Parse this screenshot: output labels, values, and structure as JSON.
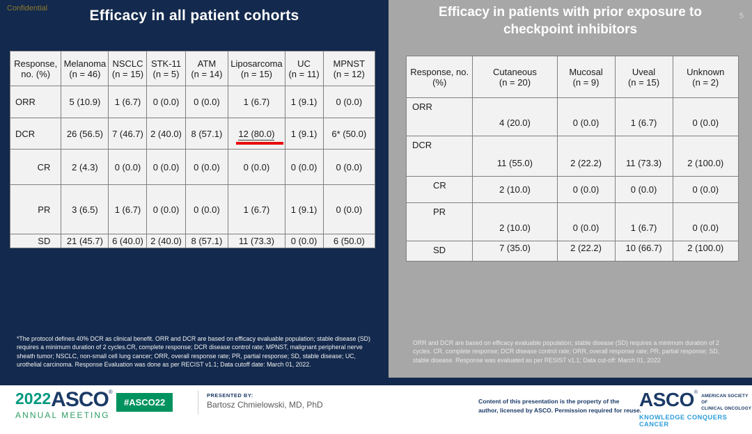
{
  "slide": {
    "confidential": "Confidential",
    "slide_number": "5",
    "left": {
      "title": "Efficacy in all patient cohorts",
      "table": {
        "header": "Response, no. (%)",
        "columns": [
          {
            "name": "Melanoma",
            "n": "(n = 46)"
          },
          {
            "name": "NSCLC",
            "n": "(n = 15)"
          },
          {
            "name": "STK-11",
            "n": "(n = 5)"
          },
          {
            "name": "ATM",
            "n": "(n = 14)"
          },
          {
            "name": "Liposarcoma",
            "n": "(n = 15)"
          },
          {
            "name": "UC",
            "n": "(n = 11)"
          },
          {
            "name": "MPNST",
            "n": "(n = 12)"
          }
        ],
        "rows": [
          {
            "label": "ORR",
            "indent": false,
            "cells": [
              "5 (10.9)",
              "1 (6.7)",
              "0 (0.0)",
              "0 (0.0)",
              "1 (6.7)",
              "1 (9.1)",
              "0 (0.0)"
            ]
          },
          {
            "label": "DCR",
            "indent": false,
            "cells": [
              "26 (56.5)",
              "7 (46.7)",
              "2 (40.0)",
              "8 (57.1)",
              "12 (80.0)",
              "1 (9.1)",
              "6* (50.0)"
            ]
          },
          {
            "label": "CR",
            "indent": true,
            "cells": [
              "2 (4.3)",
              "0 (0.0)",
              "0 (0.0)",
              "0 (0.0)",
              "0 (0.0)",
              "0 (0.0)",
              "0 (0.0)"
            ]
          },
          {
            "label": "PR",
            "indent": true,
            "cells": [
              "3 (6.5)",
              "1 (6.7)",
              "0 (0.0)",
              "0 (0.0)",
              "1 (6.7)",
              "1 (9.1)",
              "0 (0.0)"
            ]
          },
          {
            "label": "SD",
            "indent": true,
            "cells": [
              "21 (45.7)",
              "6 (40.0)",
              "2 (40.0)",
              "8 (57.1)",
              "11 (73.3)",
              "0 (0.0)",
              "6 (50.0)"
            ]
          }
        ],
        "highlight": {
          "row": 1,
          "col": 4,
          "note": "red underline under 12 (80.0)"
        }
      },
      "footnote": "*The protocol defines 40% DCR as clinical benefit. ORR and DCR are based on efficacy evaluable population; stable disease (SD) requires a minimum duration of 2 cycles.CR, complete response; DCR disease control rate; MPNST, malignant peripheral nerve sheath tumor; NSCLC, non-small cell lung cancer; ORR, overall response rate; PR, partial response; SD, stable disease; UC, urothelial carcinoma. Response Evaluation was done as per RECIST v1.1; Data cutoff date: March 01, 2022."
    },
    "right": {
      "title": "Efficacy in patients with prior exposure to checkpoint inhibitors",
      "table": {
        "header": "Response, no. (%)",
        "columns": [
          {
            "name": "Cutaneous",
            "n": "(n = 20)"
          },
          {
            "name": "Mucosal",
            "n": "(n = 9)"
          },
          {
            "name": "Uveal",
            "n": "(n = 15)"
          },
          {
            "name": "Unknown",
            "n": "(n = 2)"
          }
        ],
        "rows": [
          {
            "label": "ORR",
            "indent": false,
            "cells": [
              "4 (20.0)",
              "0 (0.0)",
              "1 (6.7)",
              "0 (0.0)"
            ]
          },
          {
            "label": "DCR",
            "indent": false,
            "cells": [
              "11 (55.0)",
              "2 (22.2)",
              "11 (73.3)",
              "2 (100.0)"
            ]
          },
          {
            "label": "CR",
            "indent": true,
            "cells": [
              "2 (10.0)",
              "0 (0.0)",
              "0 (0.0)",
              "0 (0.0)"
            ]
          },
          {
            "label": "PR",
            "indent": true,
            "cells": [
              "2 (10.0)",
              "0 (0.0)",
              "1 (6.7)",
              "0 (0.0)"
            ]
          },
          {
            "label": "SD",
            "indent": true,
            "cells": [
              "7 (35.0)",
              "2 (22.2)",
              "10 (66.7)",
              "2 (100.0)"
            ]
          }
        ]
      },
      "footnote": "ORR and DCR are based on efficacy evaluable population; stable disease (SD) requires a minimum duration of 2 cycles. CR, complete response; DCR disease control rate; ORR, overall response rate; PR, partial response; SD, stable disease. Response was evaluated as per RESIST v1.1; Data cut-off: March 01, 2022"
    },
    "footer": {
      "year": "2022",
      "asco_wordmark": "ASCO",
      "meeting": "ANNUAL MEETING",
      "hashtag": "#ASCO22",
      "presented_by_label": "PRESENTED BY:",
      "presenter": "Bartosz Chmielowski, MD, PhD",
      "disclaimer_line1": "Content of this presentation is the property of the",
      "disclaimer_line2": "author, licensed by ASCO. Permission required for reuse.",
      "asco_logo": "ASCO",
      "society_line1": "AMERICAN SOCIETY OF",
      "society_line2": "CLINICAL ONCOLOGY",
      "tagline": "KNOWLEDGE CONQUERS CANCER"
    },
    "colors": {
      "navy_background": "#13294D",
      "gray_panel": "#A7A7A7",
      "table_background": "#F2F2F2",
      "table_border": "#7F7F7F",
      "confidential_gold": "#8E7B2C",
      "highlight_red": "#E80A0A",
      "asco_navy": "#1B3A66",
      "year_teal": "#00997E",
      "annual_meeting_green": "#2E9E62",
      "hashtag_badge_green": "#00935F",
      "tagline_blue": "#2B9CD8"
    }
  }
}
